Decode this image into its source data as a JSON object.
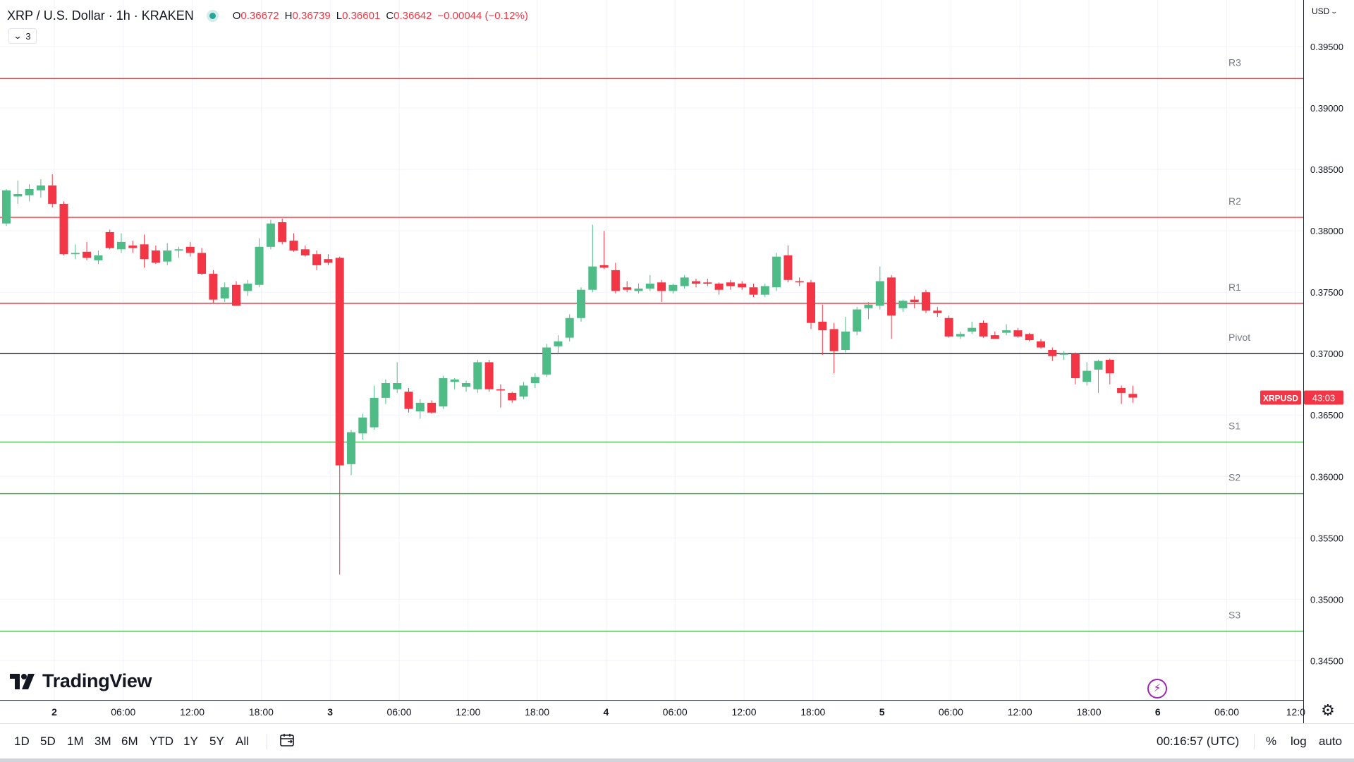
{
  "header": {
    "symbol_title": "XRP / U.S. Dollar · 1h · KRAKEN",
    "o_label": "O",
    "o_value": "0.36672",
    "h_label": "H",
    "h_value": "0.36739",
    "l_label": "L",
    "l_value": "0.36601",
    "c_label": "C",
    "c_value": "0.36642",
    "change": "−0.00044 (−0.12%)",
    "indicators_count": "3"
  },
  "logo_text": "TradingView",
  "currency_label": "USD",
  "bottom_bar": {
    "ranges": [
      "1D",
      "5D",
      "1M",
      "3M",
      "6M",
      "YTD",
      "1Y",
      "5Y",
      "All"
    ],
    "clock": "00:16:57 (UTC)",
    "percent": "%",
    "log": "log",
    "auto": "auto"
  },
  "colors": {
    "up": "#26a69a",
    "up_body": "#4fbc87",
    "down": "#f23645",
    "resistance_line": "#f23645",
    "support_line": "#4caf50",
    "pivot_line": "#131722",
    "grid": "#f0f3fa",
    "price_label_bg": "#f23645"
  },
  "chart_data": {
    "type": "candlestick",
    "title": "XRP / U.S. Dollar · 1h · KRAKEN",
    "y_axis": {
      "side": "right",
      "ylim": [
        0.3418,
        0.3988
      ],
      "ticks": [
        "0.39500",
        "0.39000",
        "0.38500",
        "0.38000",
        "0.37500",
        "0.37000",
        "0.36500",
        "0.36000",
        "0.35500",
        "0.35000",
        "0.34500"
      ]
    },
    "x_axis": {
      "ticks": [
        "2",
        "06:00",
        "12:00",
        "18:00",
        "3",
        "06:00",
        "12:00",
        "18:00",
        "4",
        "06:00",
        "12:00",
        "18:00",
        "5",
        "06:00",
        "12:00",
        "18:00",
        "6",
        "06:00",
        "12:0"
      ],
      "bold_ticks": [
        "2",
        "3",
        "4",
        "5",
        "6"
      ]
    },
    "grid": true,
    "levels": [
      {
        "name": "R3",
        "value": 0.3924,
        "kind": "resistance"
      },
      {
        "name": "R2",
        "value": 0.3811,
        "kind": "resistance"
      },
      {
        "name": "R1",
        "value": 0.3741,
        "kind": "resistance"
      },
      {
        "name": "Pivot",
        "value": 0.37,
        "kind": "pivot"
      },
      {
        "name": "S1",
        "value": 0.3628,
        "kind": "support"
      },
      {
        "name": "S2",
        "value": 0.3586,
        "kind": "support"
      },
      {
        "name": "S3",
        "value": 0.3474,
        "kind": "support"
      }
    ],
    "last_price": {
      "label": "XRPUSD",
      "countdown": "43:03",
      "value": 0.36642
    },
    "candles": [
      {
        "t": "2 00:00",
        "o": 0.3806,
        "h": 0.3834,
        "l": 0.3804,
        "c": 0.3833
      },
      {
        "t": "2 01:00",
        "o": 0.3828,
        "h": 0.3841,
        "l": 0.3822,
        "c": 0.383
      },
      {
        "t": "2 02:00",
        "o": 0.3829,
        "h": 0.3838,
        "l": 0.3824,
        "c": 0.3834
      },
      {
        "t": "2 03:00",
        "o": 0.3833,
        "h": 0.3842,
        "l": 0.3827,
        "c": 0.3837
      },
      {
        "t": "2 04:00",
        "o": 0.3837,
        "h": 0.3846,
        "l": 0.3819,
        "c": 0.3822
      },
      {
        "t": "2 05:00",
        "o": 0.3822,
        "h": 0.3824,
        "l": 0.378,
        "c": 0.3781
      },
      {
        "t": "2 06:00",
        "o": 0.3781,
        "h": 0.3789,
        "l": 0.3777,
        "c": 0.3782
      },
      {
        "t": "2 07:00",
        "o": 0.3783,
        "h": 0.3791,
        "l": 0.3776,
        "c": 0.3778
      },
      {
        "t": "2 08:00",
        "o": 0.3776,
        "h": 0.3784,
        "l": 0.3773,
        "c": 0.378
      },
      {
        "t": "2 09:00",
        "o": 0.3799,
        "h": 0.3801,
        "l": 0.3785,
        "c": 0.3786
      },
      {
        "t": "2 10:00",
        "o": 0.3785,
        "h": 0.3798,
        "l": 0.3782,
        "c": 0.3791
      },
      {
        "t": "2 11:00",
        "o": 0.3788,
        "h": 0.3792,
        "l": 0.3782,
        "c": 0.3786
      },
      {
        "t": "2 12:00",
        "o": 0.3789,
        "h": 0.3797,
        "l": 0.377,
        "c": 0.3777
      },
      {
        "t": "2 13:00",
        "o": 0.3784,
        "h": 0.3788,
        "l": 0.3773,
        "c": 0.3774
      },
      {
        "t": "2 14:00",
        "o": 0.3775,
        "h": 0.379,
        "l": 0.3772,
        "c": 0.3784
      },
      {
        "t": "2 15:00",
        "o": 0.3784,
        "h": 0.3787,
        "l": 0.3778,
        "c": 0.3785
      },
      {
        "t": "2 16:00",
        "o": 0.3787,
        "h": 0.3791,
        "l": 0.3779,
        "c": 0.3782
      },
      {
        "t": "2 17:00",
        "o": 0.3782,
        "h": 0.3786,
        "l": 0.3764,
        "c": 0.3765
      },
      {
        "t": "2 18:00",
        "o": 0.3765,
        "h": 0.3768,
        "l": 0.3741,
        "c": 0.3744
      },
      {
        "t": "2 19:00",
        "o": 0.3745,
        "h": 0.3758,
        "l": 0.3742,
        "c": 0.3754
      },
      {
        "t": "2 20:00",
        "o": 0.3756,
        "h": 0.3759,
        "l": 0.3739,
        "c": 0.3739
      },
      {
        "t": "2 21:00",
        "o": 0.3751,
        "h": 0.376,
        "l": 0.3747,
        "c": 0.3757
      },
      {
        "t": "2 22:00",
        "o": 0.3756,
        "h": 0.3794,
        "l": 0.3754,
        "c": 0.3787
      },
      {
        "t": "2 23:00",
        "o": 0.3787,
        "h": 0.3809,
        "l": 0.3785,
        "c": 0.3806
      },
      {
        "t": "3 00:00",
        "o": 0.3807,
        "h": 0.381,
        "l": 0.3789,
        "c": 0.3791
      },
      {
        "t": "3 01:00",
        "o": 0.3792,
        "h": 0.3798,
        "l": 0.3783,
        "c": 0.3784
      },
      {
        "t": "3 02:00",
        "o": 0.3785,
        "h": 0.3788,
        "l": 0.3779,
        "c": 0.378
      },
      {
        "t": "3 03:00",
        "o": 0.3781,
        "h": 0.3784,
        "l": 0.3768,
        "c": 0.3772
      },
      {
        "t": "3 04:00",
        "o": 0.3777,
        "h": 0.3781,
        "l": 0.3772,
        "c": 0.3774
      },
      {
        "t": "3 05:00",
        "o": 0.3778,
        "h": 0.3779,
        "l": 0.352,
        "c": 0.3609
      },
      {
        "t": "3 06:00",
        "o": 0.361,
        "h": 0.3638,
        "l": 0.3601,
        "c": 0.3636
      },
      {
        "t": "3 07:00",
        "o": 0.3635,
        "h": 0.3651,
        "l": 0.363,
        "c": 0.3648
      },
      {
        "t": "3 08:00",
        "o": 0.364,
        "h": 0.3674,
        "l": 0.3638,
        "c": 0.3664
      },
      {
        "t": "3 09:00",
        "o": 0.3664,
        "h": 0.3679,
        "l": 0.3659,
        "c": 0.3676
      },
      {
        "t": "3 10:00",
        "o": 0.3671,
        "h": 0.3693,
        "l": 0.3668,
        "c": 0.3676
      },
      {
        "t": "3 11:00",
        "o": 0.3669,
        "h": 0.3672,
        "l": 0.3652,
        "c": 0.3655
      },
      {
        "t": "3 12:00",
        "o": 0.3653,
        "h": 0.3663,
        "l": 0.3647,
        "c": 0.366
      },
      {
        "t": "3 13:00",
        "o": 0.366,
        "h": 0.3662,
        "l": 0.3651,
        "c": 0.3652
      },
      {
        "t": "3 14:00",
        "o": 0.3657,
        "h": 0.3682,
        "l": 0.3655,
        "c": 0.368
      },
      {
        "t": "3 15:00",
        "o": 0.3677,
        "h": 0.368,
        "l": 0.3671,
        "c": 0.3679
      },
      {
        "t": "3 16:00",
        "o": 0.3673,
        "h": 0.3678,
        "l": 0.3669,
        "c": 0.3676
      },
      {
        "t": "3 17:00",
        "o": 0.3671,
        "h": 0.3695,
        "l": 0.3668,
        "c": 0.3693
      },
      {
        "t": "3 18:00",
        "o": 0.3693,
        "h": 0.3695,
        "l": 0.3669,
        "c": 0.3671
      },
      {
        "t": "3 19:00",
        "o": 0.3671,
        "h": 0.3675,
        "l": 0.3656,
        "c": 0.367
      },
      {
        "t": "3 20:00",
        "o": 0.3668,
        "h": 0.3669,
        "l": 0.366,
        "c": 0.3662
      },
      {
        "t": "3 21:00",
        "o": 0.3665,
        "h": 0.3677,
        "l": 0.3663,
        "c": 0.3674
      },
      {
        "t": "3 22:00",
        "o": 0.3676,
        "h": 0.3684,
        "l": 0.3672,
        "c": 0.3681
      },
      {
        "t": "3 23:00",
        "o": 0.3683,
        "h": 0.3708,
        "l": 0.3681,
        "c": 0.3705
      },
      {
        "t": "4 00:00",
        "o": 0.3706,
        "h": 0.3715,
        "l": 0.37,
        "c": 0.371
      },
      {
        "t": "4 01:00",
        "o": 0.3713,
        "h": 0.3732,
        "l": 0.371,
        "c": 0.3729
      },
      {
        "t": "4 02:00",
        "o": 0.3729,
        "h": 0.3754,
        "l": 0.3726,
        "c": 0.3752
      },
      {
        "t": "4 03:00",
        "o": 0.3752,
        "h": 0.3805,
        "l": 0.375,
        "c": 0.3771
      },
      {
        "t": "4 04:00",
        "o": 0.3772,
        "h": 0.38,
        "l": 0.3769,
        "c": 0.377
      },
      {
        "t": "4 05:00",
        "o": 0.3768,
        "h": 0.3774,
        "l": 0.3749,
        "c": 0.3751
      },
      {
        "t": "4 06:00",
        "o": 0.3754,
        "h": 0.3759,
        "l": 0.375,
        "c": 0.3752
      },
      {
        "t": "4 07:00",
        "o": 0.3751,
        "h": 0.3757,
        "l": 0.3749,
        "c": 0.3753
      },
      {
        "t": "4 08:00",
        "o": 0.3753,
        "h": 0.3764,
        "l": 0.3751,
        "c": 0.3757
      },
      {
        "t": "4 09:00",
        "o": 0.3758,
        "h": 0.376,
        "l": 0.3742,
        "c": 0.3751
      },
      {
        "t": "4 10:00",
        "o": 0.3751,
        "h": 0.3757,
        "l": 0.3749,
        "c": 0.3756
      },
      {
        "t": "4 11:00",
        "o": 0.3755,
        "h": 0.3764,
        "l": 0.3753,
        "c": 0.3762
      },
      {
        "t": "4 12:00",
        "o": 0.3759,
        "h": 0.3761,
        "l": 0.3754,
        "c": 0.3757
      },
      {
        "t": "4 13:00",
        "o": 0.3758,
        "h": 0.3761,
        "l": 0.3755,
        "c": 0.3757
      },
      {
        "t": "4 14:00",
        "o": 0.3757,
        "h": 0.3758,
        "l": 0.3748,
        "c": 0.3752
      },
      {
        "t": "4 15:00",
        "o": 0.3758,
        "h": 0.376,
        "l": 0.3752,
        "c": 0.3755
      },
      {
        "t": "4 16:00",
        "o": 0.3757,
        "h": 0.3759,
        "l": 0.3752,
        "c": 0.3754
      },
      {
        "t": "4 17:00",
        "o": 0.3754,
        "h": 0.3757,
        "l": 0.3746,
        "c": 0.3748
      },
      {
        "t": "4 18:00",
        "o": 0.3748,
        "h": 0.3757,
        "l": 0.3746,
        "c": 0.3755
      },
      {
        "t": "4 19:00",
        "o": 0.3754,
        "h": 0.3782,
        "l": 0.3751,
        "c": 0.3779
      },
      {
        "t": "4 20:00",
        "o": 0.378,
        "h": 0.3788,
        "l": 0.3758,
        "c": 0.376
      },
      {
        "t": "4 21:00",
        "o": 0.3759,
        "h": 0.3762,
        "l": 0.3755,
        "c": 0.3758
      },
      {
        "t": "4 22:00",
        "o": 0.3758,
        "h": 0.376,
        "l": 0.372,
        "c": 0.3725
      },
      {
        "t": "4 23:00",
        "o": 0.3726,
        "h": 0.374,
        "l": 0.3699,
        "c": 0.3719
      },
      {
        "t": "5 00:00",
        "o": 0.372,
        "h": 0.3725,
        "l": 0.3684,
        "c": 0.3702
      },
      {
        "t": "5 01:00",
        "o": 0.3703,
        "h": 0.373,
        "l": 0.3701,
        "c": 0.3718
      },
      {
        "t": "5 02:00",
        "o": 0.3718,
        "h": 0.3738,
        "l": 0.3715,
        "c": 0.3736
      },
      {
        "t": "5 03:00",
        "o": 0.3737,
        "h": 0.3742,
        "l": 0.3728,
        "c": 0.374
      },
      {
        "t": "5 04:00",
        "o": 0.3739,
        "h": 0.3771,
        "l": 0.3736,
        "c": 0.3759
      },
      {
        "t": "5 05:00",
        "o": 0.3762,
        "h": 0.3764,
        "l": 0.3712,
        "c": 0.3731
      },
      {
        "t": "5 06:00",
        "o": 0.3737,
        "h": 0.3744,
        "l": 0.3734,
        "c": 0.3743
      },
      {
        "t": "5 07:00",
        "o": 0.3744,
        "h": 0.3747,
        "l": 0.3737,
        "c": 0.3742
      },
      {
        "t": "5 08:00",
        "o": 0.375,
        "h": 0.3752,
        "l": 0.3733,
        "c": 0.3735
      },
      {
        "t": "5 09:00",
        "o": 0.3735,
        "h": 0.3738,
        "l": 0.373,
        "c": 0.3733
      },
      {
        "t": "5 10:00",
        "o": 0.3729,
        "h": 0.3731,
        "l": 0.3713,
        "c": 0.3714
      },
      {
        "t": "5 11:00",
        "o": 0.3714,
        "h": 0.3718,
        "l": 0.3712,
        "c": 0.3716
      },
      {
        "t": "5 12:00",
        "o": 0.3718,
        "h": 0.3726,
        "l": 0.3716,
        "c": 0.3721
      },
      {
        "t": "5 13:00",
        "o": 0.3725,
        "h": 0.3727,
        "l": 0.3713,
        "c": 0.3714
      },
      {
        "t": "5 14:00",
        "o": 0.3715,
        "h": 0.3718,
        "l": 0.3712,
        "c": 0.3712
      },
      {
        "t": "5 15:00",
        "o": 0.3717,
        "h": 0.3724,
        "l": 0.3715,
        "c": 0.3719
      },
      {
        "t": "5 16:00",
        "o": 0.3719,
        "h": 0.3721,
        "l": 0.3713,
        "c": 0.3714
      },
      {
        "t": "5 17:00",
        "o": 0.3716,
        "h": 0.3717,
        "l": 0.371,
        "c": 0.3711
      },
      {
        "t": "5 18:00",
        "o": 0.371,
        "h": 0.3712,
        "l": 0.3704,
        "c": 0.3705
      },
      {
        "t": "5 19:00",
        "o": 0.3703,
        "h": 0.3705,
        "l": 0.3694,
        "c": 0.3698
      },
      {
        "t": "5 20:00",
        "o": 0.37,
        "h": 0.3702,
        "l": 0.3695,
        "c": 0.37
      },
      {
        "t": "5 21:00",
        "o": 0.37,
        "h": 0.3701,
        "l": 0.3675,
        "c": 0.368
      },
      {
        "t": "5 22:00",
        "o": 0.3677,
        "h": 0.3693,
        "l": 0.3674,
        "c": 0.3686
      },
      {
        "t": "5 23:00",
        "o": 0.3687,
        "h": 0.3695,
        "l": 0.3668,
        "c": 0.3694
      },
      {
        "t": "6 00:00",
        "o": 0.3695,
        "h": 0.3696,
        "l": 0.3675,
        "c": 0.3684
      },
      {
        "t": "6 01:00",
        "o": 0.3672,
        "h": 0.3674,
        "l": 0.3659,
        "c": 0.3668
      },
      {
        "t": "6 02:00",
        "o": 0.36672,
        "h": 0.36739,
        "l": 0.36601,
        "c": 0.36642
      }
    ]
  }
}
